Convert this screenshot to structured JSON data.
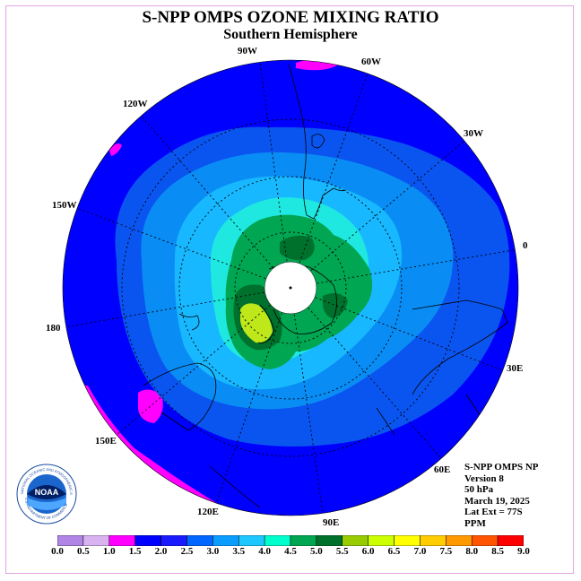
{
  "title": "S-NPP OMPS OZONE MIXING RATIO",
  "subtitle": "Southern Hemisphere",
  "longitude_labels": {
    "w90": "90W",
    "w60": "60W",
    "w30": "30W",
    "w120": "120W",
    "w150": "150W",
    "e0": "0",
    "d180": "180",
    "e30": "30E",
    "e60": "60E",
    "e90": "90E",
    "e120": "120E",
    "e150": "150E"
  },
  "info": {
    "instrument": "S-NPP OMPS NP",
    "version": "Version 8",
    "level": "50 hPa",
    "date": "March 19, 2025",
    "lat_ext": "Lat Ext = 77S",
    "units": "PPM"
  },
  "logo": {
    "text": "NOAA",
    "ring_text": "NATIONAL OCEANIC AND ATMOSPHERIC ADMINISTRATION",
    "ring_text_bottom": "U.S. DEPARTMENT OF COMMERCE"
  },
  "colorbar": {
    "ticks": [
      "0.0",
      "0.5",
      "1.0",
      "1.5",
      "2.0",
      "2.5",
      "3.0",
      "3.5",
      "4.0",
      "4.5",
      "5.0",
      "5.5",
      "6.0",
      "6.5",
      "7.0",
      "7.5",
      "8.0",
      "8.5",
      "9.0"
    ],
    "colors": [
      "#b085e6",
      "#d9b3f0",
      "#ff00ff",
      "#0000ff",
      "#1a1aff",
      "#0066ff",
      "#0a9cff",
      "#1ec8ff",
      "#00ffcc",
      "#00a651",
      "#00702d",
      "#99cc00",
      "#ccff00",
      "#ffff00",
      "#ffcc00",
      "#ff9900",
      "#ff5500",
      "#ff0000",
      "#8b5a2b"
    ]
  },
  "colors": {
    "deep_blue": "#0000ff",
    "blue2": "#0a55f0",
    "blue3": "#0a8cf5",
    "blue4": "#17b8ff",
    "cyan": "#1ee8e0",
    "green": "#00a651",
    "dark_green": "#00702d",
    "yellow_green": "#bfe81a",
    "magenta": "#ff00ff",
    "pole": "#ffffff"
  }
}
